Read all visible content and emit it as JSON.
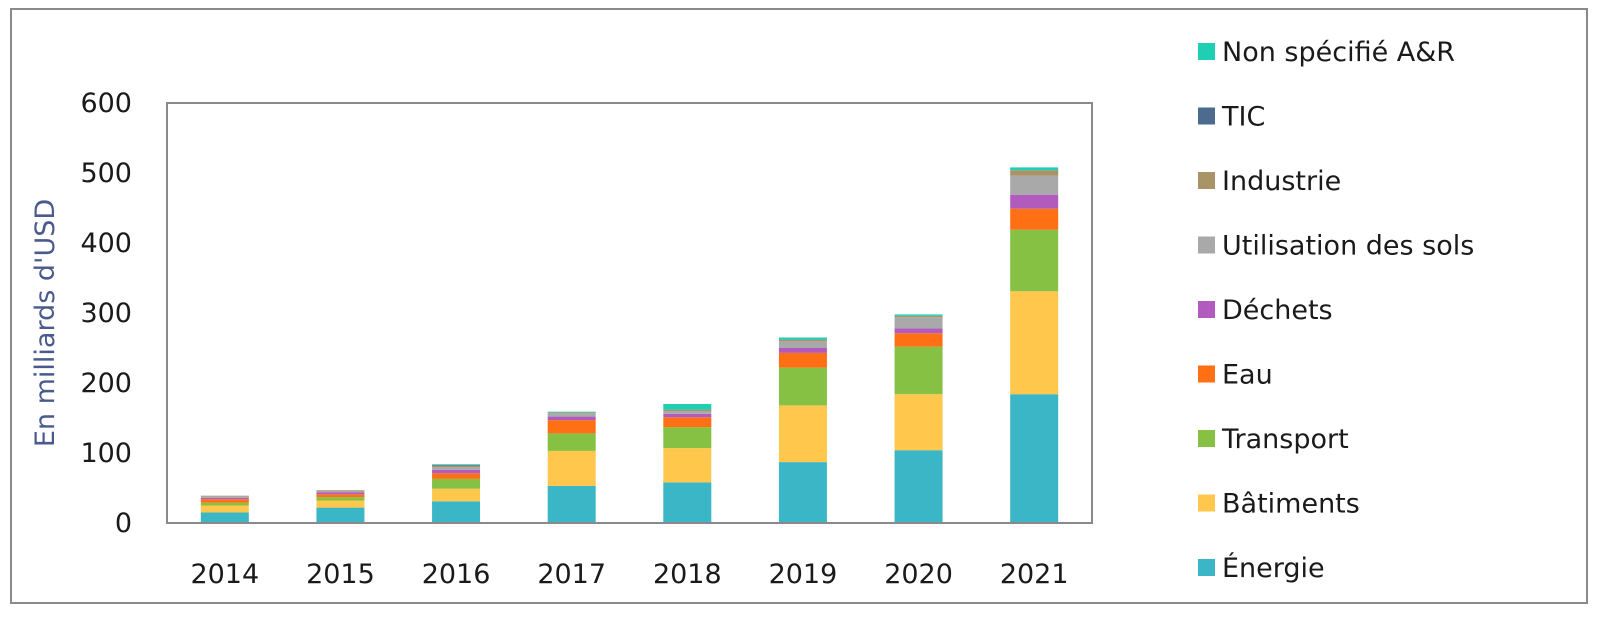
{
  "chart_data": {
    "type": "bar",
    "stacked": true,
    "categories": [
      "2014",
      "2015",
      "2016",
      "2017",
      "2018",
      "2019",
      "2020",
      "2021"
    ],
    "ylabel": "En milliards d'USD",
    "xlabel": "",
    "ylim": [
      0,
      600
    ],
    "yticks": [
      0,
      100,
      200,
      300,
      400,
      500,
      600
    ],
    "grid": false,
    "legend_position": "right",
    "series": [
      {
        "name": "Énergie",
        "color": "#3bb6c7",
        "values": [
          15,
          22,
          31,
          53,
          58,
          87,
          104,
          184
        ]
      },
      {
        "name": "Bâtiments",
        "color": "#ffc84d",
        "values": [
          10,
          10,
          18,
          50,
          49,
          81,
          80,
          147
        ]
      },
      {
        "name": "Transport",
        "color": "#86c144",
        "values": [
          4,
          5,
          14,
          25,
          30,
          54,
          68,
          88
        ]
      },
      {
        "name": "Eau",
        "color": "#ff6f14",
        "values": [
          5,
          4,
          8,
          19,
          14,
          21,
          19,
          30
        ]
      },
      {
        "name": "Déchets",
        "color": "#b25bbf",
        "values": [
          2,
          3,
          5,
          5,
          5,
          7,
          7,
          20
        ]
      },
      {
        "name": "Utilisation des sols",
        "color": "#a9a9a9",
        "values": [
          2,
          2,
          4,
          5,
          4,
          10,
          16,
          27
        ]
      },
      {
        "name": "Industrie",
        "color": "#a89466",
        "values": [
          1,
          1,
          2,
          1,
          2,
          2,
          2,
          8
        ]
      },
      {
        "name": "TIC",
        "color": "#4d6a8f",
        "values": [
          0,
          0,
          1,
          0,
          0,
          0,
          0,
          0
        ]
      },
      {
        "name": "Non spécifié A&R",
        "color": "#1fcfb3",
        "values": [
          0,
          0,
          1,
          1,
          8,
          3,
          2,
          4
        ]
      }
    ]
  }
}
